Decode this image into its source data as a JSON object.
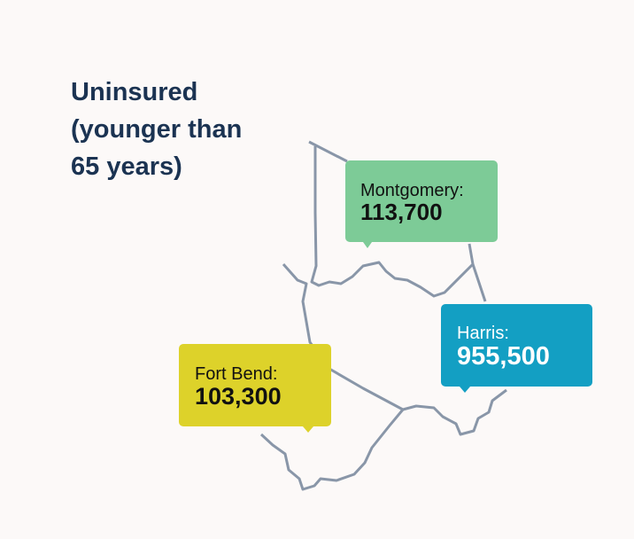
{
  "title": [
    "Uninsured",
    "(younger than",
    "65 years)"
  ],
  "callouts": [
    {
      "label": "Montgomery:",
      "value": "113,700"
    },
    {
      "label": "Harris:",
      "value": "955,500"
    },
    {
      "label": "Fort Bend:",
      "value": "103,300"
    }
  ]
}
